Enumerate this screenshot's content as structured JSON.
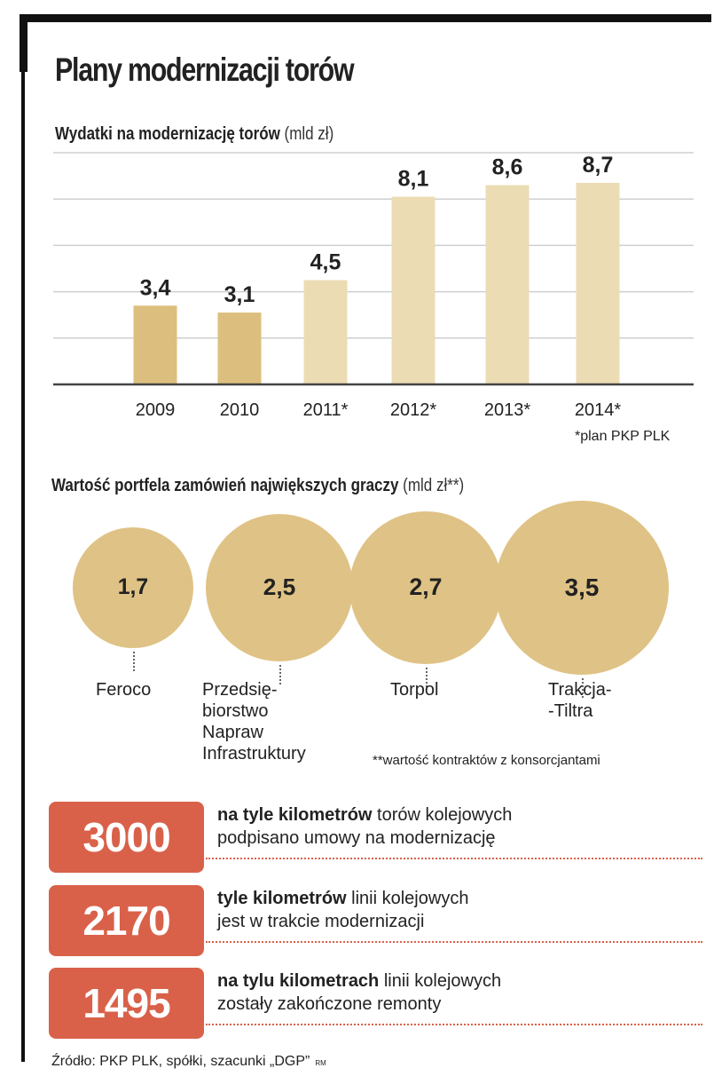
{
  "title": "Plany modernizacji torów",
  "chart_data": [
    {
      "type": "bar",
      "title": "Wydatki na modernizację torów",
      "unit": "(mld zł)",
      "categories": [
        "2009",
        "2010",
        "2011*",
        "2012*",
        "2013*",
        "2014*"
      ],
      "values": [
        3.4,
        3.1,
        4.5,
        8.1,
        8.6,
        8.7
      ],
      "value_labels": [
        "3,4",
        "3,1",
        "4,5",
        "8,1",
        "8,6",
        "8,7"
      ],
      "planned": [
        false,
        false,
        true,
        true,
        true,
        true
      ],
      "ylim": [
        0,
        10
      ],
      "grid": true,
      "footnote": "*plan PKP PLK",
      "colors": {
        "actual": "#dcbf7e",
        "planned": "#ecdcb4"
      }
    },
    {
      "type": "bubble",
      "title": "Wartość portfela zamówień największych graczy",
      "unit": "(mld zł**)",
      "categories": [
        "Feroco",
        "Przedsię-\nbiorstwo\nNapraw\nInfrastruktury",
        "Torpol",
        "Trakcja-\n-Tiltra"
      ],
      "values": [
        1.7,
        2.5,
        2.7,
        3.5
      ],
      "value_labels": [
        "1,7",
        "2,5",
        "2,7",
        "3,5"
      ],
      "footnote": "**wartość kontraktów z konsorcjantami",
      "color": "#dfc285"
    }
  ],
  "stats": [
    {
      "value": "3000",
      "bold": "na tyle kilometrów",
      "rest": " torów kolejowych",
      "line2": "podpisano umowy na modernizację"
    },
    {
      "value": "2170",
      "bold": "tyle kilometrów",
      "rest": " linii kolejowych",
      "line2": "jest w trakcie modernizacji"
    },
    {
      "value": "1495",
      "bold": "na tylu kilometrach",
      "rest": " linii kolejowych",
      "line2": "zostały zakończone remonty"
    }
  ],
  "source": "Źródło: PKP PLK, spółki, szacunki „DGP”",
  "author": "RM",
  "accent": "#d9614a"
}
